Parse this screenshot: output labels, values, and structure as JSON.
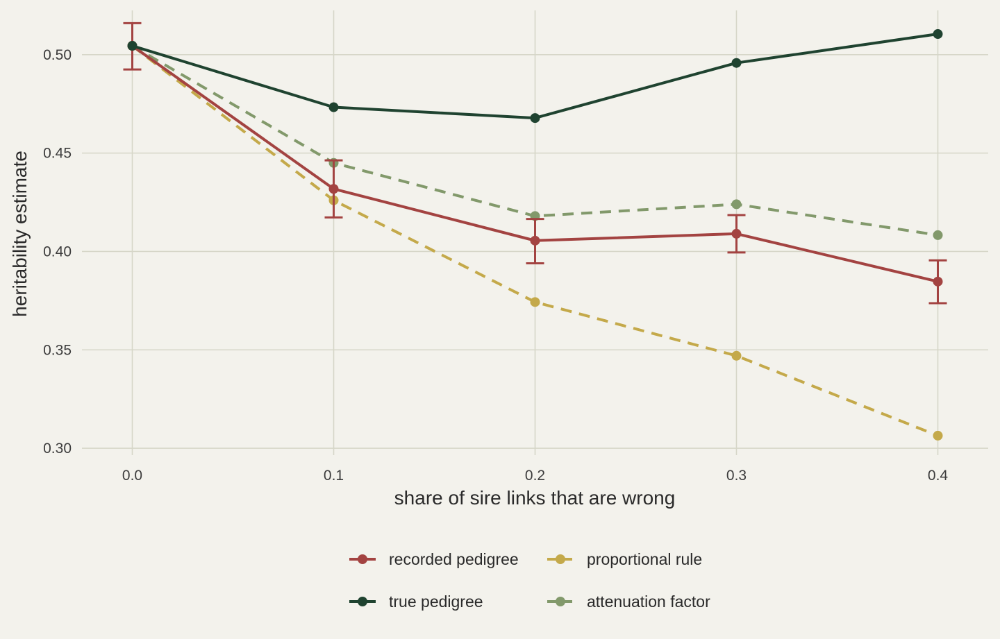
{
  "chart_data": {
    "type": "line",
    "title": "",
    "xlabel": "share of sire links that are wrong",
    "ylabel": "heritability estimate",
    "x": [
      0.0,
      0.1,
      0.2,
      0.3,
      0.4
    ],
    "x_tick_labels": [
      "0.0",
      "0.1",
      "0.2",
      "0.3",
      "0.4"
    ],
    "y_ticks": [
      0.3,
      0.35,
      0.4,
      0.45,
      0.5
    ],
    "y_tick_labels": [
      "0.30",
      "0.35",
      "0.40",
      "0.45",
      "0.50"
    ],
    "xlim": [
      -0.025,
      0.425
    ],
    "ylim": [
      0.2965,
      0.5225
    ],
    "grid": true,
    "legend_position": "bottom",
    "series": [
      {
        "name": "recorded pedigree",
        "color": "#a34341",
        "dash": "solid",
        "values": [
          0.5045,
          0.4318,
          0.4055,
          0.409,
          0.3847
        ],
        "error_low": [
          0.4925,
          0.4173,
          0.394,
          0.3995,
          0.3737
        ],
        "error_high": [
          0.516,
          0.4463,
          0.4165,
          0.4185,
          0.3955
        ]
      },
      {
        "name": "true pedigree",
        "color": "#1f4330",
        "dash": "solid",
        "values": [
          0.5045,
          0.4733,
          0.4678,
          0.4958,
          0.5105
        ]
      },
      {
        "name": "proportional rule",
        "color": "#c4a94a",
        "dash": "dashed",
        "values": [
          0.5045,
          0.426,
          0.3743,
          0.347,
          0.3064
        ]
      },
      {
        "name": "attenuation factor",
        "color": "#82996b",
        "dash": "dashed",
        "values": [
          0.5045,
          0.445,
          0.418,
          0.424,
          0.4083
        ]
      }
    ],
    "legend_order": [
      "recorded pedigree",
      "proportional rule",
      "true pedigree",
      "attenuation factor"
    ]
  }
}
